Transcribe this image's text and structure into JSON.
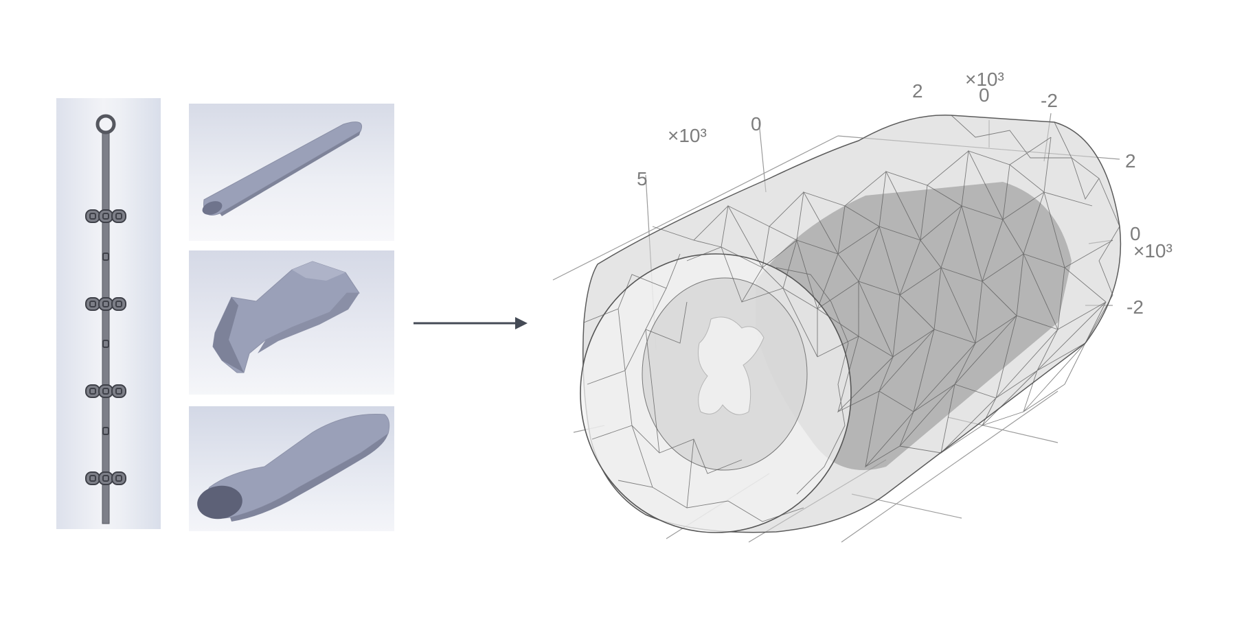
{
  "figure": {
    "left_group": {
      "electrode_icon": "electrode-lead-icon",
      "shapes": [
        {
          "icon": "elongated-cylinder-shape-icon"
        },
        {
          "icon": "irregular-blob-shape-icon"
        },
        {
          "icon": "tapered-cylinder-shape-icon"
        }
      ]
    },
    "arrow_icon": "right-arrow-icon",
    "mesh": {
      "icon": "cylindrical-mesh-icon",
      "axis_exponent_labels": [
        "×10³",
        "×10³",
        "×10³"
      ],
      "axis_a_ticks": [
        "5",
        "0"
      ],
      "axis_b_ticks": [
        "2",
        "0",
        "-2"
      ],
      "axis_c_ticks": [
        "2",
        "0",
        "-2"
      ]
    },
    "colors": {
      "shape_fill": "#9aa0b8",
      "shape_shadow": "#6f748c",
      "electrode_fill": "#7d7f88",
      "mesh_line": "#555555",
      "arrow": "#444a55"
    }
  }
}
